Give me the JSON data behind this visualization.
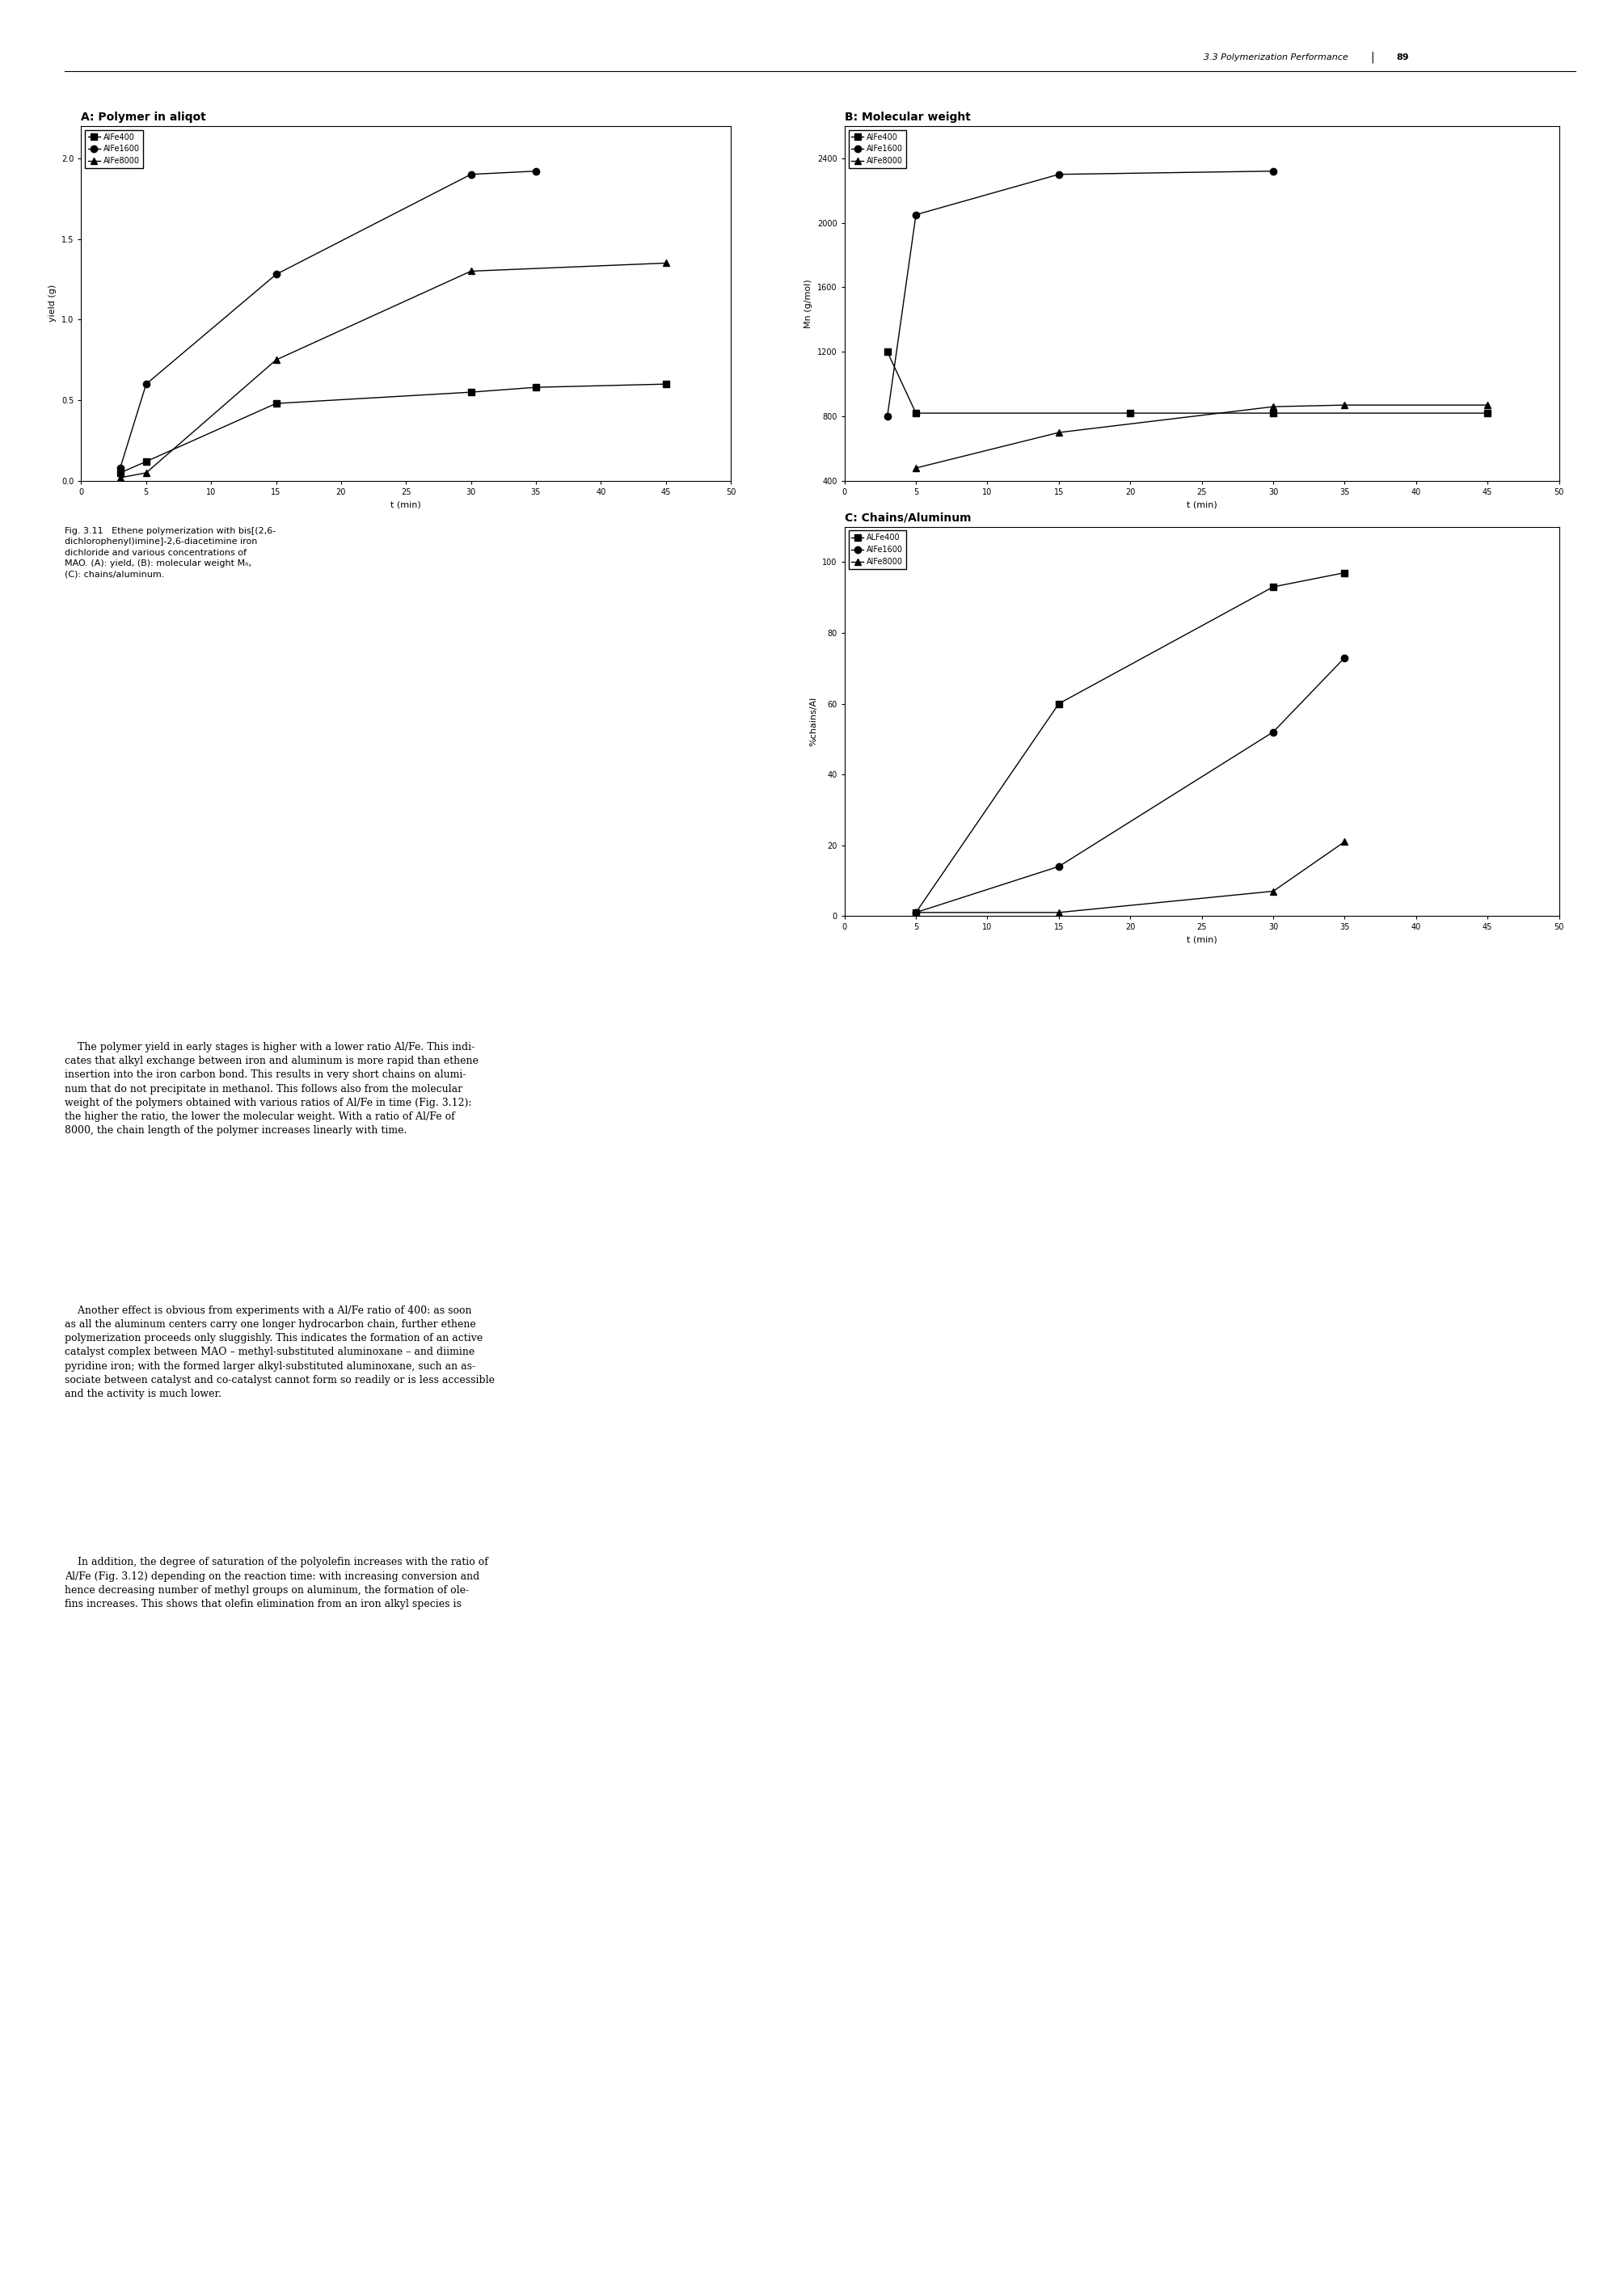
{
  "page_header": "3.3 Polymerization Performance",
  "page_number": "89",
  "subplot_A": {
    "title": "A: Polymer in aliqot",
    "xlabel": "t (min)",
    "ylabel": "yield (g)",
    "xlim": [
      0,
      50
    ],
    "ylim": [
      0.0,
      2.2
    ],
    "yticks": [
      0.0,
      0.5,
      1.0,
      1.5,
      2.0
    ],
    "xticks": [
      0,
      5,
      10,
      15,
      20,
      25,
      30,
      35,
      40,
      45,
      50
    ],
    "series": {
      "AlFe400": {
        "x": [
          3,
          5,
          15,
          30,
          35,
          45
        ],
        "y": [
          0.05,
          0.12,
          0.48,
          0.55,
          0.58,
          0.6
        ]
      },
      "AlFe1600": {
        "x": [
          3,
          5,
          15,
          30,
          35
        ],
        "y": [
          0.08,
          0.6,
          1.28,
          1.9,
          1.92
        ]
      },
      "AlFe8000": {
        "x": [
          3,
          5,
          15,
          30,
          45
        ],
        "y": [
          0.02,
          0.05,
          0.75,
          1.3,
          1.35
        ]
      }
    }
  },
  "subplot_B": {
    "title": "B: Molecular weight",
    "xlabel": "t (min)",
    "ylabel": "Mn (g/mol)",
    "xlim": [
      0,
      50
    ],
    "ylim": [
      400,
      2600
    ],
    "yticks": [
      400,
      800,
      1200,
      1600,
      2000,
      2400
    ],
    "xticks": [
      0,
      5,
      10,
      15,
      20,
      25,
      30,
      35,
      40,
      45,
      50
    ],
    "series": {
      "AlFe400": {
        "x": [
          3,
          5,
          20,
          30,
          45
        ],
        "y": [
          1200,
          820,
          820,
          820,
          820
        ]
      },
      "AlFe1600": {
        "x": [
          3,
          5,
          15,
          30
        ],
        "y": [
          800,
          2050,
          2300,
          2320
        ]
      },
      "AlFe8000": {
        "x": [
          5,
          15,
          30,
          35,
          45
        ],
        "y": [
          480,
          700,
          860,
          870,
          870
        ]
      }
    }
  },
  "subplot_C": {
    "title": "C: Chains/Aluminum",
    "xlabel": "t (min)",
    "ylabel": "%chains/Al",
    "xlim": [
      0,
      50
    ],
    "ylim": [
      0,
      110
    ],
    "yticks": [
      0,
      20,
      40,
      60,
      80,
      100
    ],
    "xticks": [
      0,
      5,
      10,
      15,
      20,
      25,
      30,
      35,
      40,
      45,
      50
    ],
    "series": {
      "ALFe400": {
        "x": [
          5,
          15,
          30,
          35
        ],
        "y": [
          1,
          60,
          93,
          97
        ]
      },
      "AlFe1600": {
        "x": [
          5,
          15,
          30,
          35
        ],
        "y": [
          1,
          14,
          52,
          73
        ]
      },
      "AlFe8000": {
        "x": [
          5,
          15,
          30,
          35
        ],
        "y": [
          1,
          1,
          7,
          21
        ]
      }
    }
  },
  "legend_labels_AB": [
    "AlFe400",
    "AlFe1600",
    "AlFe8000"
  ],
  "legend_labels_C": [
    "ALFe400",
    "AlFe1600",
    "AlFe8000"
  ],
  "markers": {
    "AlFe400": "s",
    "AlFe1600": "o",
    "AlFe8000": "^",
    "ALFe400": "s"
  },
  "line_color": "#000000",
  "bg_color": "#ffffff",
  "marker_size": 6,
  "line_width": 1.0,
  "title_fontsize": 10,
  "axis_label_fontsize": 8,
  "tick_fontsize": 7,
  "legend_fontsize": 7,
  "caption_fontsize": 8,
  "header_fontsize": 8,
  "body_fontsize": 9
}
